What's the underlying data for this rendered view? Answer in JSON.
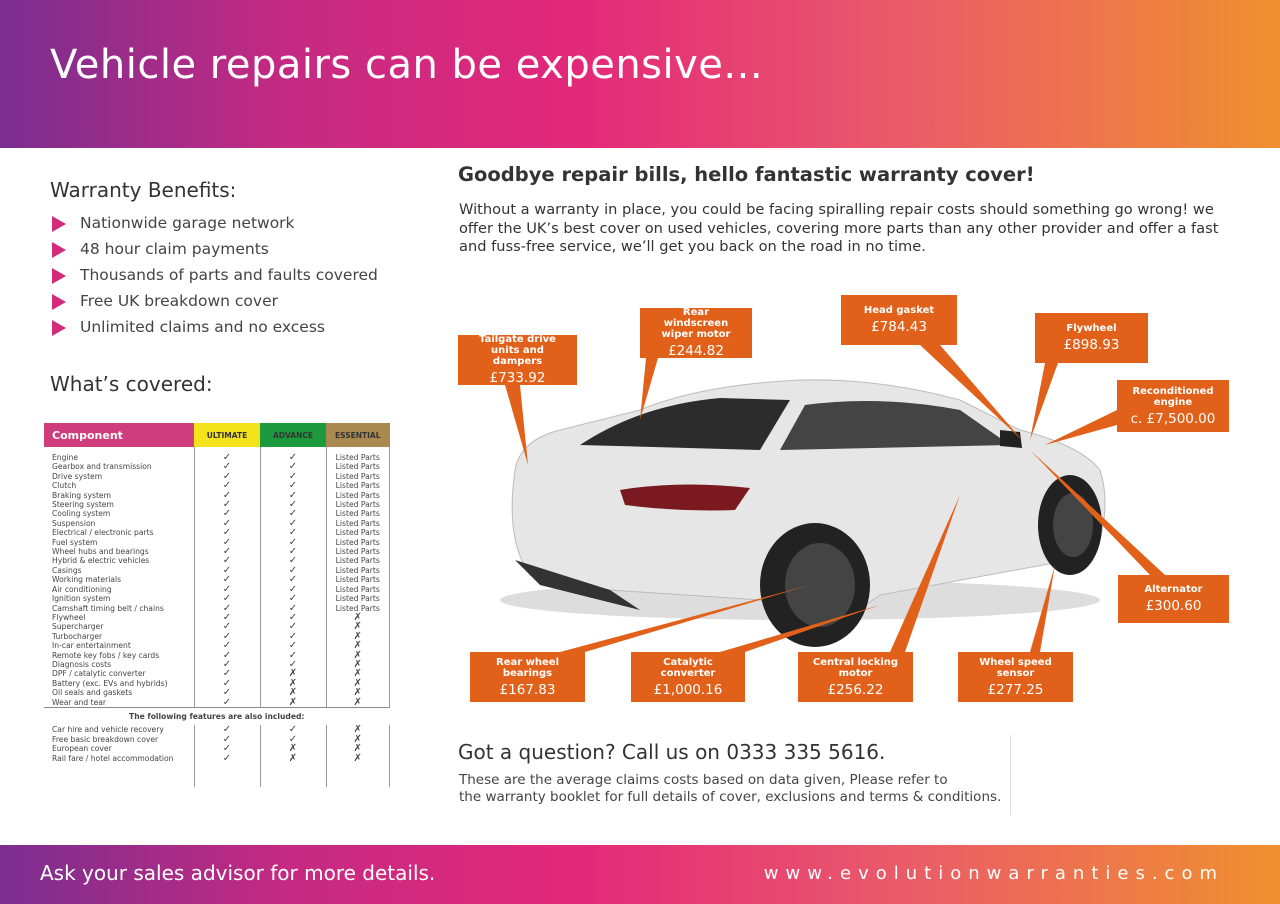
{
  "header": {
    "title": "Vehicle repairs can be expensive..."
  },
  "benefits": {
    "title": "Warranty Benefits:",
    "items": [
      "Nationwide garage network",
      "48 hour claim payments",
      "Thousands of parts and faults covered",
      "Free UK breakdown cover",
      "Unlimited claims and no excess"
    ]
  },
  "covered": {
    "title": "What’s covered:",
    "columns": [
      "Component",
      "ULTIMATE",
      "ADVANCE",
      "ESSENTIAL"
    ],
    "column_colors": [
      "#cf3d7c",
      "#f4e21a",
      "#1e9a3e",
      "#a9894f"
    ],
    "rows": [
      [
        "Engine",
        "✓",
        "✓",
        "Listed Parts"
      ],
      [
        "Gearbox and transmission",
        "✓",
        "✓",
        "Listed Parts"
      ],
      [
        "Drive system",
        "✓",
        "✓",
        "Listed Parts"
      ],
      [
        "Clutch",
        "✓",
        "✓",
        "Listed Parts"
      ],
      [
        "Braking system",
        "✓",
        "✓",
        "Listed Parts"
      ],
      [
        "Steering system",
        "✓",
        "✓",
        "Listed Parts"
      ],
      [
        "Cooling system",
        "✓",
        "✓",
        "Listed Parts"
      ],
      [
        "Suspension",
        "✓",
        "✓",
        "Listed Parts"
      ],
      [
        "Electrical / electronic parts",
        "✓",
        "✓",
        "Listed Parts"
      ],
      [
        "Fuel system",
        "✓",
        "✓",
        "Listed Parts"
      ],
      [
        "Wheel hubs and bearings",
        "✓",
        "✓",
        "Listed Parts"
      ],
      [
        "Hybrid & electric vehicles",
        "✓",
        "✓",
        "Listed Parts"
      ],
      [
        "Casings",
        "✓",
        "✓",
        "Listed Parts"
      ],
      [
        "Working materials",
        "✓",
        "✓",
        "Listed Parts"
      ],
      [
        "Air conditioning",
        "✓",
        "✓",
        "Listed Parts"
      ],
      [
        "Ignition system",
        "✓",
        "✓",
        "Listed Parts"
      ],
      [
        "Camshaft timing belt / chains",
        "✓",
        "✓",
        "Listed Parts"
      ],
      [
        "Flywheel",
        "✓",
        "✓",
        "✗"
      ],
      [
        "Supercharger",
        "✓",
        "✓",
        "✗"
      ],
      [
        "Turbocharger",
        "✓",
        "✓",
        "✗"
      ],
      [
        "In-car entertainment",
        "✓",
        "✓",
        "✗"
      ],
      [
        "Remote key fobs / key cards",
        "✓",
        "✓",
        "✗"
      ],
      [
        "Diagnosis costs",
        "✓",
        "✓",
        "✗"
      ],
      [
        "DPF / catalytic converter",
        "✓",
        "✗",
        "✗"
      ],
      [
        "Battery (exc. EVs and hybrids)",
        "✓",
        "✗",
        "✗"
      ],
      [
        "Oil seals and gaskets",
        "✓",
        "✗",
        "✗"
      ],
      [
        "Wear and tear",
        "✓",
        "✗",
        "✗"
      ]
    ],
    "extras_title": "The following features are also included:",
    "extras": [
      [
        "Car hire and vehicle recovery",
        "✓",
        "✓",
        "✗"
      ],
      [
        "Free basic breakdown cover",
        "✓",
        "✓",
        "✗"
      ],
      [
        "European cover",
        "✓",
        "✗",
        "✗"
      ],
      [
        "Rail fare / hotel accommodation",
        "✓",
        "✗",
        "✗"
      ]
    ]
  },
  "main": {
    "title": "Goodbye repair bills, hello fantastic warranty cover!",
    "paragraph": "Without a warranty in place, you could be facing spiralling repair costs should something go wrong! we offer the UK’s best cover on used vehicles, covering more parts than any other provider and offer a fast and fuss-free service, we’ll get you back on the road in no time."
  },
  "callouts": [
    {
      "label": "Tailgate drive units and dampers",
      "price": "£733.92"
    },
    {
      "label": "Rear windscreen wiper motor",
      "price": "£244.82"
    },
    {
      "label": "Head gasket",
      "price": "£784.43"
    },
    {
      "label": "Flywheel",
      "price": "£898.93"
    },
    {
      "label": "Reconditioned engine",
      "price": "c. £7,500.00"
    },
    {
      "label": "Alternator",
      "price": "£300.60"
    },
    {
      "label": "Rear wheel bearings",
      "price": "£167.83"
    },
    {
      "label": "Catalytic converter",
      "price": "£1,000.16"
    },
    {
      "label": "Central locking motor",
      "price": "£256.22"
    },
    {
      "label": "Wheel speed sensor",
      "price": "£277.25"
    }
  ],
  "callout_color": "#e2611a",
  "contact": {
    "title": "Got a question? Call us on 0333 335 5616.",
    "note_line1": "These are the average claims costs based on data given, Please refer to",
    "note_line2": "the warranty booklet for full details of cover, exclusions and terms & conditions."
  },
  "footer": {
    "left": "Ask your sales advisor for more details.",
    "website": "www.evolutionwarranties.com"
  }
}
